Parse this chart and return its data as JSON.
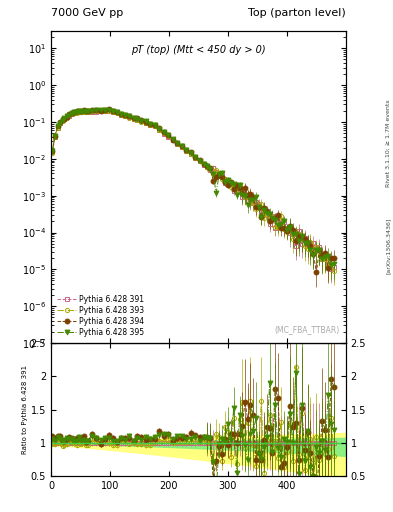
{
  "title_left": "7000 GeV pp",
  "title_right": "Top (parton level)",
  "main_label": "pT (top) (Mtt < 450 dy > 0)",
  "watermark": "(MC_FBA_TTBAR)",
  "right_label_top": "Rivet 3.1.10; ≥ 1.7M events",
  "right_label_bottom": "[arXiv:1306.3436]",
  "ylabel_ratio": "Ratio to Pythia 6.428 391",
  "ylim_main": [
    1e-07,
    30
  ],
  "ylim_ratio": [
    0.5,
    2.5
  ],
  "xlim": [
    0,
    500
  ],
  "xticks": [
    0,
    100,
    200,
    300,
    400
  ],
  "series": [
    {
      "label": "Pythia 6.428 391",
      "color": "#cc6688",
      "marker": "s",
      "linestyle": "--",
      "mfc": "none"
    },
    {
      "label": "Pythia 6.428 393",
      "color": "#aaaa00",
      "marker": "o",
      "linestyle": "-.",
      "mfc": "none"
    },
    {
      "label": "Pythia 6.428 394",
      "color": "#7b3f00",
      "marker": "o",
      "linestyle": "--",
      "mfc": "#7b3f00"
    },
    {
      "label": "Pythia 6.428 395",
      "color": "#448800",
      "marker": "v",
      "linestyle": "-.",
      "mfc": "#448800"
    }
  ],
  "band_yellow": "#ffff80",
  "band_green": "#80ee80",
  "ratio_line_color": "#44cc44",
  "background_color": "#ffffff"
}
